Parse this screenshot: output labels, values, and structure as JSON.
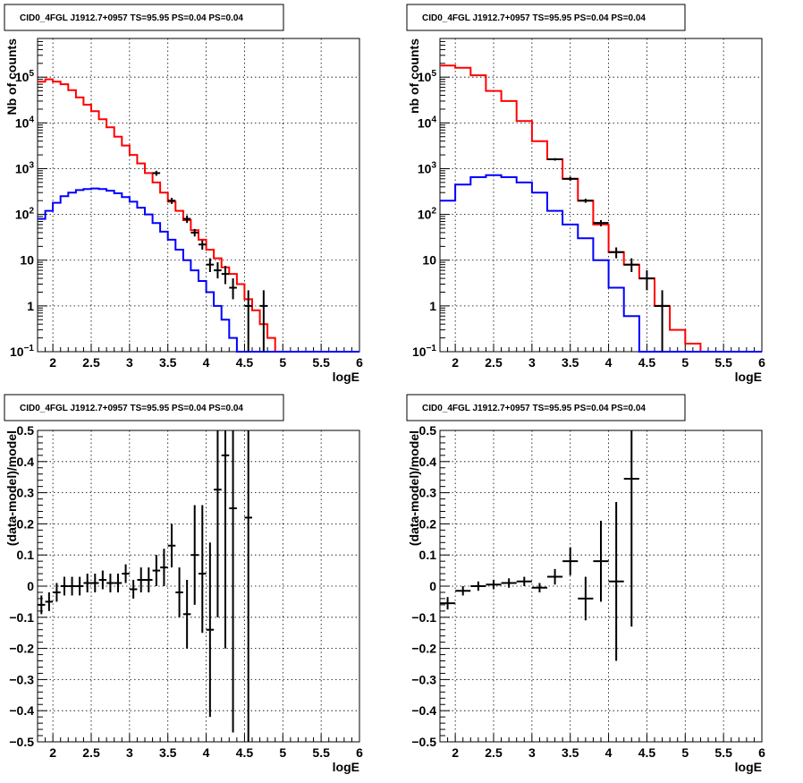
{
  "chart_data": [
    {
      "type": "line",
      "title": "CID0_4FGL J1912.7+0957 TS=95.95 PS=0.04 PS=0.04",
      "xlabel": "logE",
      "ylabel": "Nb of counts",
      "xscale": "linear",
      "yscale": "log",
      "xlim": [
        1.8,
        6.0
      ],
      "ylim": [
        0.1,
        700000
      ],
      "grid": true,
      "x_ticks": [
        "2",
        "2.5",
        "3",
        "3.5",
        "4",
        "4.5",
        "5",
        "5.5",
        "6"
      ],
      "y_ticks": [
        {
          "base": "10",
          "exp": "−1",
          "v": 0.1
        },
        {
          "base": "1",
          "exp": "",
          "v": 1
        },
        {
          "base": "10",
          "exp": "",
          "v": 10
        },
        {
          "base": "10",
          "exp": "2",
          "v": 100
        },
        {
          "base": "10",
          "exp": "3",
          "v": 1000
        },
        {
          "base": "10",
          "exp": "4",
          "v": 10000
        },
        {
          "base": "10",
          "exp": "5",
          "v": 100000
        }
      ],
      "bin_edges": [
        1.8,
        1.9,
        2.0,
        2.1,
        2.2,
        2.3,
        2.4,
        2.5,
        2.6,
        2.7,
        2.8,
        2.9,
        3.0,
        3.1,
        3.2,
        3.3,
        3.4,
        3.5,
        3.6,
        3.7,
        3.8,
        3.9,
        4.0,
        4.1,
        4.2,
        4.3,
        4.4,
        4.5,
        4.6,
        4.7,
        4.8,
        4.9,
        5.0,
        5.1,
        5.2,
        5.3,
        5.4,
        5.5,
        5.6,
        5.7,
        5.8,
        5.9,
        6.0
      ],
      "series": [
        {
          "color": "#ff0000",
          "values": [
            80000,
            90000,
            80000,
            70000,
            52000,
            36000,
            25000,
            18000,
            12000,
            8000,
            5000,
            3200,
            2000,
            1300,
            800,
            500,
            300,
            190,
            120,
            75,
            45,
            28,
            17,
            11,
            7,
            5,
            3,
            1.4,
            0.8,
            0.4,
            0.2,
            0.1,
            0.1,
            0.1,
            0.1,
            0.1,
            0.1,
            0.1,
            0.1,
            0.1,
            0.1,
            0.1
          ]
        },
        {
          "color": "#0000ff",
          "values": [
            80,
            120,
            180,
            250,
            300,
            340,
            360,
            370,
            360,
            330,
            290,
            240,
            190,
            140,
            100,
            65,
            42,
            28,
            17,
            10,
            6,
            3.5,
            2,
            1,
            0.5,
            0.2,
            0.1,
            0.1,
            0.1,
            0.1,
            0.1,
            0.1,
            0.1,
            0.1,
            0.1,
            0.1,
            0.1,
            0.1,
            0.1,
            0.1,
            0.1,
            0.1
          ]
        }
      ],
      "points": [
        {
          "x": 3.35,
          "y": 800,
          "xerr": 0.05,
          "ylo": 700,
          "yhi": 900
        },
        {
          "x": 3.55,
          "y": 200,
          "xerr": 0.05,
          "ylo": 170,
          "yhi": 230
        },
        {
          "x": 3.75,
          "y": 80,
          "xerr": 0.05,
          "ylo": 65,
          "yhi": 95
        },
        {
          "x": 3.85,
          "y": 40,
          "xerr": 0.05,
          "ylo": 33,
          "yhi": 48
        },
        {
          "x": 3.95,
          "y": 22,
          "xerr": 0.05,
          "ylo": 17,
          "yhi": 27
        },
        {
          "x": 4.05,
          "y": 8,
          "xerr": 0.05,
          "ylo": 5.5,
          "yhi": 11
        },
        {
          "x": 4.15,
          "y": 6,
          "xerr": 0.05,
          "ylo": 4,
          "yhi": 9
        },
        {
          "x": 4.25,
          "y": 5,
          "xerr": 0.05,
          "ylo": 3,
          "yhi": 7.5
        },
        {
          "x": 4.35,
          "y": 2.5,
          "xerr": 0.05,
          "ylo": 1.4,
          "yhi": 4
        },
        {
          "x": 4.55,
          "y": 1,
          "xerr": 0.05,
          "ylo": 0.1,
          "yhi": 2.2
        },
        {
          "x": 4.75,
          "y": 1,
          "xerr": 0.05,
          "ylo": 0.1,
          "yhi": 2.2
        }
      ]
    },
    {
      "type": "line",
      "title": "CID0_4FGL J1912.7+0957 TS=95.95 PS=0.04 PS=0.04",
      "xlabel": "logE",
      "ylabel": "nb of counts",
      "xscale": "linear",
      "yscale": "log",
      "xlim": [
        1.8,
        6.0
      ],
      "ylim": [
        0.1,
        700000
      ],
      "grid": true,
      "x_ticks": [
        "2",
        "2.5",
        "3",
        "3.5",
        "4",
        "4.5",
        "5",
        "5.5",
        "6"
      ],
      "y_ticks": [
        {
          "base": "10",
          "exp": "−1",
          "v": 0.1
        },
        {
          "base": "1",
          "exp": "",
          "v": 1
        },
        {
          "base": "10",
          "exp": "",
          "v": 10
        },
        {
          "base": "10",
          "exp": "2",
          "v": 100
        },
        {
          "base": "10",
          "exp": "3",
          "v": 1000
        },
        {
          "base": "10",
          "exp": "4",
          "v": 10000
        },
        {
          "base": "10",
          "exp": "5",
          "v": 100000
        }
      ],
      "bin_edges": [
        1.8,
        2.0,
        2.2,
        2.4,
        2.6,
        2.8,
        3.0,
        3.2,
        3.4,
        3.6,
        3.8,
        4.0,
        4.2,
        4.4,
        4.6,
        4.8,
        5.0,
        5.2,
        5.4,
        5.6,
        5.8,
        6.0
      ],
      "series": [
        {
          "color": "#ff0000",
          "values": [
            180000,
            160000,
            110000,
            50000,
            30000,
            11000,
            4000,
            1600,
            600,
            200,
            60,
            15,
            8,
            4,
            1,
            0.3,
            0.15,
            0.1,
            0.1,
            0.1,
            0.1
          ]
        },
        {
          "color": "#0000ff",
          "values": [
            200,
            450,
            650,
            720,
            650,
            500,
            300,
            120,
            60,
            30,
            10,
            2.5,
            0.6,
            0.1,
            0.1,
            0.1,
            0.1,
            0.1,
            0.1,
            0.1,
            0.1
          ]
        }
      ],
      "points": [
        {
          "x": 3.3,
          "y": 1600,
          "xerr": 0.1,
          "ylo": 1500,
          "yhi": 1700
        },
        {
          "x": 3.5,
          "y": 600,
          "xerr": 0.1,
          "ylo": 540,
          "yhi": 660
        },
        {
          "x": 3.7,
          "y": 200,
          "xerr": 0.1,
          "ylo": 180,
          "yhi": 220
        },
        {
          "x": 3.9,
          "y": 65,
          "xerr": 0.1,
          "ylo": 55,
          "yhi": 75
        },
        {
          "x": 4.1,
          "y": 15,
          "xerr": 0.1,
          "ylo": 11,
          "yhi": 19
        },
        {
          "x": 4.3,
          "y": 8,
          "xerr": 0.1,
          "ylo": 5.5,
          "yhi": 11
        },
        {
          "x": 4.5,
          "y": 4,
          "xerr": 0.1,
          "ylo": 2.2,
          "yhi": 6
        },
        {
          "x": 4.7,
          "y": 1,
          "xerr": 0.1,
          "ylo": 0.1,
          "yhi": 2.2
        }
      ]
    },
    {
      "type": "scatter",
      "title": "CID0_4FGL J1912.7+0957 TS=95.95 PS=0.04 PS=0.04",
      "xlabel": "logE",
      "ylabel": "(data-model)/model",
      "xscale": "linear",
      "yscale": "linear",
      "xlim": [
        1.8,
        6.0
      ],
      "ylim": [
        -0.5,
        0.5
      ],
      "grid": true,
      "x_ticks": [
        "2",
        "2.5",
        "3",
        "3.5",
        "4",
        "4.5",
        "5",
        "5.5",
        "6"
      ],
      "y_ticks": [
        "−0.5",
        "−0.4",
        "−0.3",
        "−0.2",
        "−0.1",
        "0",
        "0.1",
        "0.2",
        "0.3",
        "0.4",
        "0.5"
      ],
      "points": [
        {
          "x": 1.85,
          "y": -0.06,
          "xerr": 0.05,
          "ylo": -0.09,
          "yhi": -0.03
        },
        {
          "x": 1.95,
          "y": -0.05,
          "xerr": 0.05,
          "ylo": -0.08,
          "yhi": -0.02
        },
        {
          "x": 2.05,
          "y": -0.02,
          "xerr": 0.05,
          "ylo": -0.05,
          "yhi": 0.01
        },
        {
          "x": 2.15,
          "y": 0.0,
          "xerr": 0.05,
          "ylo": -0.03,
          "yhi": 0.03
        },
        {
          "x": 2.25,
          "y": 0.0,
          "xerr": 0.05,
          "ylo": -0.03,
          "yhi": 0.03
        },
        {
          "x": 2.35,
          "y": 0.0,
          "xerr": 0.05,
          "ylo": -0.03,
          "yhi": 0.03
        },
        {
          "x": 2.45,
          "y": 0.01,
          "xerr": 0.05,
          "ylo": -0.02,
          "yhi": 0.04
        },
        {
          "x": 2.55,
          "y": 0.01,
          "xerr": 0.05,
          "ylo": -0.02,
          "yhi": 0.04
        },
        {
          "x": 2.65,
          "y": 0.02,
          "xerr": 0.05,
          "ylo": -0.01,
          "yhi": 0.05
        },
        {
          "x": 2.75,
          "y": 0.01,
          "xerr": 0.05,
          "ylo": -0.02,
          "yhi": 0.04
        },
        {
          "x": 2.85,
          "y": 0.01,
          "xerr": 0.05,
          "ylo": -0.02,
          "yhi": 0.04
        },
        {
          "x": 2.95,
          "y": 0.04,
          "xerr": 0.05,
          "ylo": 0.01,
          "yhi": 0.07
        },
        {
          "x": 3.05,
          "y": -0.01,
          "xerr": 0.05,
          "ylo": -0.04,
          "yhi": 0.02
        },
        {
          "x": 3.15,
          "y": 0.02,
          "xerr": 0.05,
          "ylo": -0.02,
          "yhi": 0.06
        },
        {
          "x": 3.25,
          "y": 0.02,
          "xerr": 0.05,
          "ylo": -0.02,
          "yhi": 0.06
        },
        {
          "x": 3.35,
          "y": 0.05,
          "xerr": 0.05,
          "ylo": 0.0,
          "yhi": 0.1
        },
        {
          "x": 3.45,
          "y": 0.06,
          "xerr": 0.05,
          "ylo": 0.0,
          "yhi": 0.12
        },
        {
          "x": 3.55,
          "y": 0.13,
          "xerr": 0.05,
          "ylo": 0.06,
          "yhi": 0.2
        },
        {
          "x": 3.65,
          "y": -0.02,
          "xerr": 0.05,
          "ylo": -0.1,
          "yhi": 0.06
        },
        {
          "x": 3.75,
          "y": -0.09,
          "xerr": 0.05,
          "ylo": -0.2,
          "yhi": 0.02
        },
        {
          "x": 3.85,
          "y": 0.1,
          "xerr": 0.05,
          "ylo": -0.06,
          "yhi": 0.26
        },
        {
          "x": 3.95,
          "y": 0.04,
          "xerr": 0.05,
          "ylo": -0.15,
          "yhi": 0.26
        },
        {
          "x": 4.05,
          "y": -0.14,
          "xerr": 0.05,
          "ylo": -0.42,
          "yhi": 0.14
        },
        {
          "x": 4.15,
          "y": 0.31,
          "xerr": 0.05,
          "ylo": -0.1,
          "yhi": 0.5
        },
        {
          "x": 4.25,
          "y": 0.42,
          "xerr": 0.05,
          "ylo": -0.2,
          "yhi": 0.5
        },
        {
          "x": 4.35,
          "y": 0.25,
          "xerr": 0.05,
          "ylo": -0.47,
          "yhi": 0.5
        },
        {
          "x": 4.55,
          "y": 0.22,
          "xerr": 0.05,
          "ylo": -0.5,
          "yhi": 0.5
        }
      ]
    },
    {
      "type": "scatter",
      "title": "CID0_4FGL J1912.7+0957 TS=95.95 PS=0.04 PS=0.04",
      "xlabel": "logE",
      "ylabel": "(data-model)/model",
      "xscale": "linear",
      "yscale": "linear",
      "xlim": [
        1.8,
        6.0
      ],
      "ylim": [
        -0.5,
        0.5
      ],
      "grid": true,
      "x_ticks": [
        "2",
        "2.5",
        "3",
        "3.5",
        "4",
        "4.5",
        "5",
        "5.5",
        "6"
      ],
      "y_ticks": [
        "−0.5",
        "−0.4",
        "−0.3",
        "−0.2",
        "−0.1",
        "0",
        "0.1",
        "0.2",
        "0.3",
        "0.4",
        "0.5"
      ],
      "points": [
        {
          "x": 1.9,
          "y": -0.055,
          "xerr": 0.1,
          "ylo": -0.075,
          "yhi": -0.035
        },
        {
          "x": 2.1,
          "y": -0.015,
          "xerr": 0.1,
          "ylo": -0.03,
          "yhi": 0.0
        },
        {
          "x": 2.3,
          "y": 0.0,
          "xerr": 0.1,
          "ylo": -0.015,
          "yhi": 0.015
        },
        {
          "x": 2.5,
          "y": 0.005,
          "xerr": 0.1,
          "ylo": -0.01,
          "yhi": 0.02
        },
        {
          "x": 2.7,
          "y": 0.01,
          "xerr": 0.1,
          "ylo": -0.005,
          "yhi": 0.025
        },
        {
          "x": 2.9,
          "y": 0.015,
          "xerr": 0.1,
          "ylo": 0.0,
          "yhi": 0.03
        },
        {
          "x": 3.1,
          "y": -0.005,
          "xerr": 0.1,
          "ylo": -0.02,
          "yhi": 0.01
        },
        {
          "x": 3.3,
          "y": 0.03,
          "xerr": 0.1,
          "ylo": 0.005,
          "yhi": 0.055
        },
        {
          "x": 3.5,
          "y": 0.08,
          "xerr": 0.1,
          "ylo": 0.035,
          "yhi": 0.125
        },
        {
          "x": 3.7,
          "y": -0.04,
          "xerr": 0.1,
          "ylo": -0.11,
          "yhi": 0.03
        },
        {
          "x": 3.9,
          "y": 0.08,
          "xerr": 0.1,
          "ylo": -0.05,
          "yhi": 0.21
        },
        {
          "x": 4.1,
          "y": 0.015,
          "xerr": 0.1,
          "ylo": -0.24,
          "yhi": 0.27
        },
        {
          "x": 4.3,
          "y": 0.345,
          "xerr": 0.1,
          "ylo": -0.13,
          "yhi": 0.5
        }
      ]
    }
  ]
}
